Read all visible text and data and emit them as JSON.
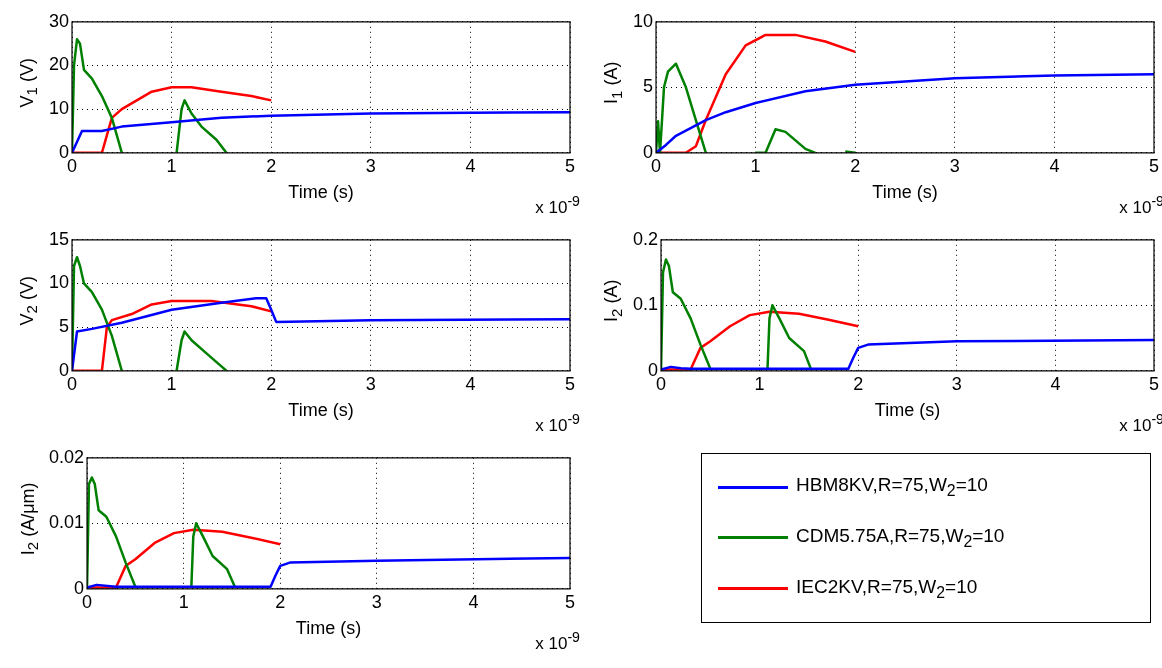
{
  "chart_data": [
    {
      "type": "line",
      "ylabel": "V$_{1}$ (V)",
      "xlabel": "Time (s)",
      "annotations": [
        "x 10$^{-9}$"
      ],
      "xlim": [
        0,
        5
      ],
      "xticks": [
        0,
        1,
        2,
        3,
        4,
        5
      ],
      "ylim": [
        0,
        30
      ],
      "yticks": [
        0,
        10,
        20,
        30
      ],
      "grid": true,
      "marker": "none",
      "line_style": "solid",
      "series": [
        {
          "color": "#0000ff",
          "x": [
            0,
            0.1,
            0.3,
            0.5,
            1,
            1.5,
            2,
            3,
            4,
            5
          ],
          "values": [
            0,
            5,
            5,
            6,
            7,
            8,
            8.5,
            9,
            9.2,
            9.3
          ]
        },
        {
          "color": "#008000",
          "x": [
            0,
            0.02,
            0.05,
            0.08,
            0.12,
            0.2,
            0.3,
            0.4,
            0.5,
            0.8,
            1.05,
            1.1,
            1.13,
            1.2,
            1.3,
            1.45,
            1.55
          ],
          "values": [
            0,
            20,
            26,
            25,
            19,
            17,
            13,
            8,
            0,
            null,
            0,
            10,
            12,
            9,
            6,
            3,
            0
          ]
        },
        {
          "color": "#ff0000",
          "x": [
            0,
            0.3,
            0.4,
            0.5,
            0.8,
            1,
            1.2,
            1.5,
            1.8,
            2
          ],
          "values": [
            0,
            0,
            8,
            10,
            14,
            15,
            15,
            14,
            13,
            12
          ]
        }
      ]
    },
    {
      "type": "line",
      "ylabel": "I$_{1}$ (A)",
      "xlabel": "Time (s)",
      "annotations": [
        "x 10$^{-9}$"
      ],
      "xlim": [
        0,
        5
      ],
      "xticks": [
        0,
        1,
        2,
        3,
        4,
        5
      ],
      "ylim": [
        0,
        10
      ],
      "yticks": [
        0,
        5,
        10
      ],
      "grid": true,
      "marker": "none",
      "line_style": "solid",
      "series": [
        {
          "color": "#0000ff",
          "x": [
            0,
            0.1,
            0.2,
            0.5,
            0.7,
            1,
            1.5,
            2,
            3,
            4,
            5
          ],
          "values": [
            0,
            0.6,
            1.3,
            2.5,
            3.1,
            3.8,
            4.7,
            5.2,
            5.7,
            5.9,
            6
          ]
        },
        {
          "color": "#008000",
          "x": [
            0,
            0.02,
            0.04,
            0.08,
            0.12,
            0.2,
            0.3,
            0.4,
            0.5,
            0.8,
            1,
            1.1,
            1.2,
            1.3,
            1.5,
            1.6,
            1.8,
            1.9,
            2
          ],
          "values": [
            0,
            2.4,
            0,
            5,
            6.2,
            6.8,
            5,
            2.5,
            0,
            null,
            0,
            0,
            1.8,
            1.6,
            0.3,
            0,
            null,
            0.1,
            0
          ]
        },
        {
          "color": "#ff0000",
          "x": [
            0,
            0.3,
            0.4,
            0.5,
            0.7,
            0.9,
            1.1,
            1.4,
            1.7,
            2
          ],
          "values": [
            0,
            0,
            0.5,
            2.5,
            6,
            8.2,
            9,
            9,
            8.5,
            7.7
          ]
        }
      ]
    },
    {
      "type": "line",
      "ylabel": "V$_{2}$ (V)",
      "xlabel": "Time (s)",
      "annotations": [
        "x 10$^{-9}$"
      ],
      "xlim": [
        0,
        5
      ],
      "xticks": [
        0,
        1,
        2,
        3,
        4,
        5
      ],
      "ylim": [
        0,
        15
      ],
      "yticks": [
        0,
        5,
        10,
        15
      ],
      "grid": true,
      "marker": "none",
      "line_style": "solid",
      "series": [
        {
          "color": "#0000ff",
          "x": [
            0,
            0.05,
            0.2,
            0.5,
            1,
            1.5,
            1.85,
            1.95,
            2,
            2.05,
            3,
            5
          ],
          "values": [
            0,
            4.5,
            4.8,
            5.5,
            7,
            7.8,
            8.3,
            8.3,
            7,
            5.6,
            5.8,
            5.9
          ]
        },
        {
          "color": "#008000",
          "x": [
            0,
            0.02,
            0.05,
            0.08,
            0.12,
            0.2,
            0.3,
            0.4,
            0.5,
            0.8,
            1.05,
            1.1,
            1.13,
            1.2,
            1.35,
            1.5,
            1.55
          ],
          "values": [
            0,
            12,
            13,
            12,
            10,
            9,
            7,
            4,
            0,
            null,
            0,
            3.5,
            4.5,
            3.5,
            2,
            0.5,
            0
          ]
        },
        {
          "color": "#ff0000",
          "x": [
            0,
            0.3,
            0.35,
            0.4,
            0.6,
            0.8,
            1,
            1.4,
            1.8,
            2
          ],
          "values": [
            0,
            0,
            5,
            5.8,
            6.5,
            7.6,
            8,
            8,
            7.4,
            6.8
          ]
        }
      ]
    },
    {
      "type": "line",
      "ylabel": "I$_{2}$ (A)",
      "xlabel": "Time (s)",
      "annotations": [
        "x 10$^{-9}$"
      ],
      "xlim": [
        0,
        5
      ],
      "xticks": [
        0,
        1,
        2,
        3,
        4,
        5
      ],
      "ylim": [
        0,
        0.2
      ],
      "yticks": [
        0,
        0.1,
        0.2
      ],
      "grid": true,
      "marker": "none",
      "line_style": "solid",
      "series": [
        {
          "color": "#0000ff",
          "x": [
            0,
            0.1,
            0.2,
            0.3,
            1.9,
            1.95,
            2,
            2.1,
            3,
            5
          ],
          "values": [
            0.002,
            0.006,
            0.004,
            0.003,
            0.003,
            0.02,
            0.035,
            0.04,
            0.045,
            0.047
          ]
        },
        {
          "color": "#008000",
          "x": [
            0,
            0.02,
            0.05,
            0.08,
            0.12,
            0.2,
            0.3,
            0.4,
            0.5,
            0.8,
            1.08,
            1.1,
            1.13,
            1.2,
            1.3,
            1.45,
            1.52
          ],
          "values": [
            0,
            0.15,
            0.17,
            0.16,
            0.12,
            0.11,
            0.08,
            0.04,
            0.003,
            null,
            0.003,
            0.08,
            0.1,
            0.08,
            0.05,
            0.03,
            0.003
          ]
        },
        {
          "color": "#ff0000",
          "x": [
            0,
            0.3,
            0.4,
            0.5,
            0.7,
            0.9,
            1.1,
            1.4,
            1.7,
            2
          ],
          "values": [
            0.002,
            0.002,
            0.035,
            0.045,
            0.068,
            0.085,
            0.09,
            0.087,
            0.078,
            0.068
          ]
        }
      ]
    },
    {
      "type": "line",
      "ylabel": "I$_{2}$ (A/μm)",
      "xlabel": "Time (s)",
      "annotations": [
        "x 10$^{-9}$"
      ],
      "xlim": [
        0,
        5
      ],
      "xticks": [
        0,
        1,
        2,
        3,
        4,
        5
      ],
      "ylim": [
        0,
        0.02
      ],
      "yticks": [
        0,
        0.01,
        0.02
      ],
      "grid": true,
      "marker": "none",
      "line_style": "solid",
      "legend": "right",
      "series": [
        {
          "name": "HBM8KV,R=75,W$_{2}$=10",
          "color": "#0000ff",
          "x": [
            0,
            0.1,
            0.3,
            1.9,
            1.95,
            2,
            2.1,
            3,
            5
          ],
          "values": [
            0.0002,
            0.0006,
            0.0003,
            0.0003,
            0.002,
            0.0035,
            0.004,
            0.0043,
            0.0047
          ]
        },
        {
          "name": "CDM5.75A,R=75,W$_{2}$=10",
          "color": "#008000",
          "x": [
            0,
            0.02,
            0.05,
            0.08,
            0.12,
            0.2,
            0.3,
            0.4,
            0.5,
            0.8,
            1.08,
            1.1,
            1.13,
            1.2,
            1.3,
            1.45,
            1.53
          ],
          "values": [
            0,
            0.016,
            0.017,
            0.016,
            0.012,
            0.011,
            0.008,
            0.004,
            0.0003,
            null,
            0.0003,
            0.008,
            0.01,
            0.008,
            0.005,
            0.003,
            0.0003
          ]
        },
        {
          "name": "IEC2KV,R=75,W$_{2}$=10",
          "color": "#ff0000",
          "x": [
            0,
            0.3,
            0.4,
            0.5,
            0.7,
            0.9,
            1.1,
            1.4,
            1.7,
            2
          ],
          "values": [
            0.0002,
            0.0002,
            0.0035,
            0.0045,
            0.007,
            0.0085,
            0.009,
            0.0087,
            0.0078,
            0.0068
          ]
        }
      ]
    }
  ]
}
